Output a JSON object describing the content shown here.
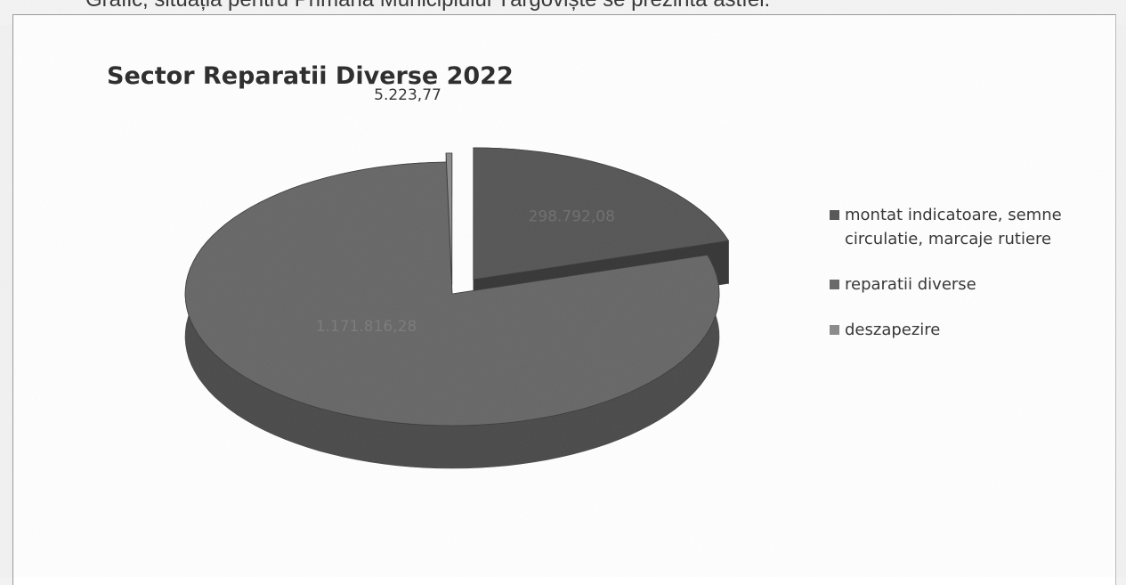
{
  "page": {
    "caption": "Grafic, situația pentru Primăria Municipiului Târgoviște se prezintă astfel:"
  },
  "chart_data": {
    "type": "pie",
    "title": "Sector Reparatii Diverse 2022",
    "slices": [
      {
        "name": "montat indicatoare, semne circulatie, marcaje rutiere",
        "value": 298792.08,
        "label": "298.792,08",
        "color": "#555555"
      },
      {
        "name": "reparatii diverse",
        "value": 1171816.28,
        "label": "1.171.816,28",
        "color": "#666666"
      },
      {
        "name": "deszapezire",
        "value": 5223.77,
        "label": "5.223,77",
        "color": "#8a8a8a"
      }
    ],
    "legend": [
      "montat indicatoare, semne circulatie, marcaje rutiere",
      "reparatii diverse",
      "deszapezire"
    ],
    "legend_position": "right",
    "style": "3d-exploded"
  }
}
